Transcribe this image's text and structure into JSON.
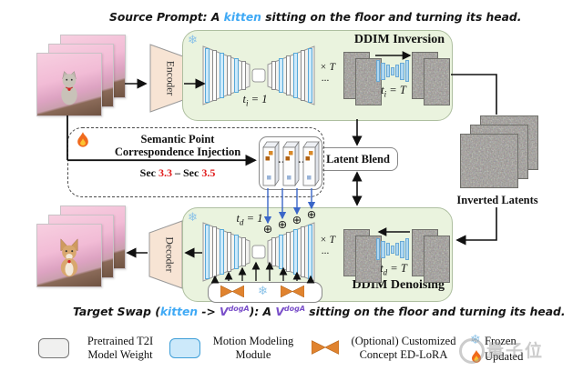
{
  "source_prompt": {
    "prefix": "Source Prompt: A ",
    "keyword": "kitten",
    "suffix": " sitting on the floor and turning its head."
  },
  "target_prompt": {
    "prefix": "Target Swap (",
    "keyword": "kitten",
    "arrow": " -> ",
    "token": "V",
    "token_sup": "dogA",
    "mid": "): A ",
    "token2": "V",
    "token2_sup": "dogA",
    "suffix": " sitting on the floor and turning its head."
  },
  "encoder_label": "Encoder",
  "decoder_label": "Decoder",
  "inversion": {
    "title": "DDIM Inversion",
    "t_start": {
      "sym": "t",
      "sub": "i",
      "eq": " = 1"
    },
    "t_end": {
      "sym": "t",
      "sub": "i",
      "eq": " = T"
    },
    "repeat": "× T",
    "ellipsis": "..."
  },
  "denoising": {
    "title": "DDIM Denoising",
    "t_start": {
      "sym": "t",
      "sub": "d",
      "eq": " = 1"
    },
    "t_end": {
      "sym": "t",
      "sub": "d",
      "eq": " = T"
    },
    "repeat": "× T",
    "ellipsis": "..."
  },
  "injection": {
    "title_line1": "Semantic Point",
    "title_line2": "Correspondence Injection",
    "sec_prefix": "Sec ",
    "sec_from": "3.3",
    "sec_mid": " – Sec ",
    "sec_to": "3.5"
  },
  "latent_blend_label": "Latent Blend",
  "inverted_latents_label": "Inverted Latents",
  "slab_ellipsis": "…",
  "plus_symbol": "⊕",
  "snowflake_symbol": "❄",
  "legend": {
    "pretrained": {
      "line1": "Pretrained T2I",
      "line2": "Model Weight"
    },
    "motion": {
      "line1": "Motion Modeling",
      "line2": "Module"
    },
    "lora": {
      "line1": "(Optional) Customized",
      "line2": "Concept ED-LoRA"
    },
    "frozen": "Frozen",
    "updated": "Updated"
  },
  "watermark": "量子位",
  "colors": {
    "keyword_blue": "#3fa9f5",
    "token_purple": "#7a4fc9",
    "section_red": "#e01b1b",
    "box_green": "#eaf3de",
    "module_blue": "#cdeafb",
    "lora_orange": "#e0832f",
    "snow_blue": "#8cc3e8"
  }
}
